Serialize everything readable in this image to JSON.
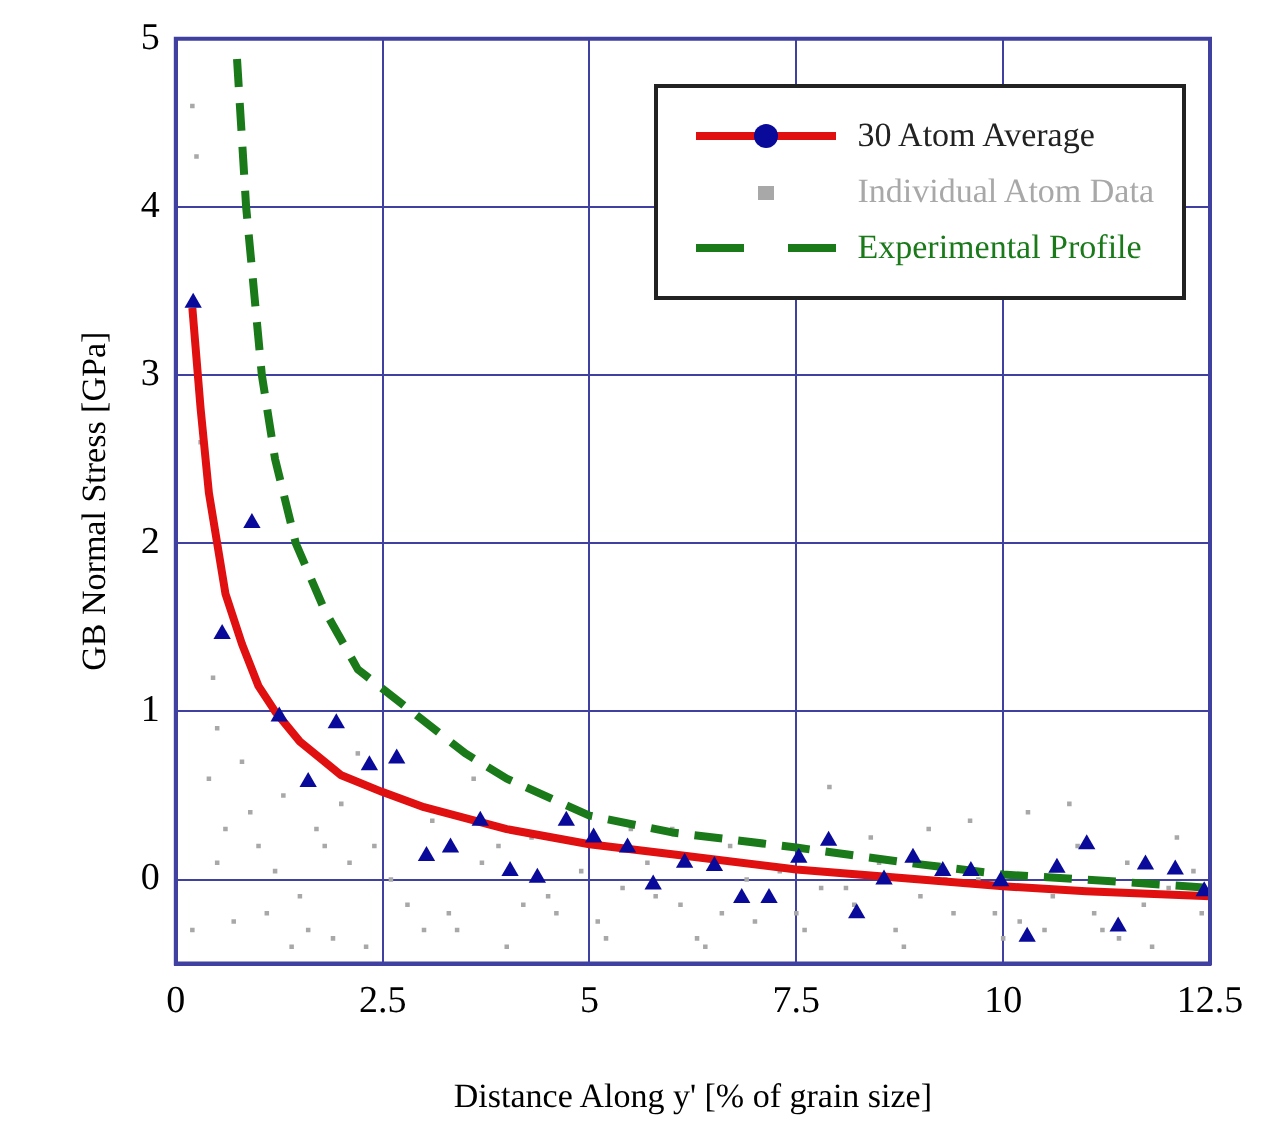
{
  "chart_data": {
    "type": "line",
    "xlabel": "Distance Along y' [% of grain size]",
    "ylabel": "GB Normal Stress [GPa]",
    "xlim": [
      0,
      12.5
    ],
    "xticks": [
      0,
      2.5,
      5,
      7.5,
      10,
      12.5
    ],
    "ylim": [
      -0.5,
      5
    ],
    "yticks": [
      0,
      1,
      2,
      3,
      4,
      5
    ],
    "grid": true,
    "legend": "top right",
    "series": [
      {
        "name": "30 Atom Average",
        "color": "#e01010",
        "marker": "none",
        "line_style": "solid",
        "x": [
          0.2,
          0.3,
          0.4,
          0.6,
          0.8,
          1.0,
          1.2,
          1.5,
          2.0,
          2.5,
          3.0,
          4.0,
          5.0,
          6.0,
          7.5,
          9.0,
          10.0,
          11.0,
          12.5
        ],
        "values": [
          3.4,
          2.8,
          2.3,
          1.7,
          1.4,
          1.15,
          1.0,
          0.82,
          0.62,
          0.52,
          0.43,
          0.3,
          0.21,
          0.15,
          0.06,
          0.0,
          -0.04,
          -0.07,
          -0.1
        ]
      },
      {
        "type": "scatter",
        "color": "#0a0a9a",
        "marker": "triangle",
        "x": [
          0.21,
          0.56,
          0.92,
          1.25,
          1.6,
          1.94,
          2.34,
          2.67,
          3.03,
          3.32,
          3.68,
          4.04,
          4.37,
          4.72,
          5.05,
          5.46,
          5.77,
          6.15,
          6.51,
          6.84,
          7.17,
          7.53,
          7.89,
          8.23,
          8.56,
          8.91,
          9.27,
          9.61,
          9.97,
          10.29,
          10.65,
          11.01,
          11.39,
          11.72,
          12.08,
          12.43
        ],
        "values": [
          3.43,
          1.46,
          2.12,
          0.97,
          0.58,
          0.93,
          0.68,
          0.72,
          0.14,
          0.19,
          0.35,
          0.05,
          0.01,
          0.35,
          0.25,
          0.19,
          -0.03,
          0.1,
          0.08,
          -0.11,
          -0.11,
          0.13,
          0.23,
          -0.2,
          0.0,
          0.13,
          0.05,
          0.05,
          -0.01,
          -0.34,
          0.07,
          0.21,
          -0.28,
          0.09,
          0.06,
          -0.07
        ]
      },
      {
        "name": "Individual Atom Data",
        "type": "scatter",
        "color": "#a8a8a8",
        "marker": "square",
        "x": [
          0.2,
          0.25,
          0.3,
          0.45,
          0.5,
          0.2,
          0.6,
          0.8,
          1.0,
          1.1,
          1.3,
          1.5,
          1.7,
          1.9,
          2.1,
          2.3,
          0.4,
          0.7,
          0.9,
          1.2,
          1.6,
          2.0,
          2.4,
          2.8,
          3.1,
          3.4,
          3.7,
          4.0,
          4.3,
          4.6,
          4.9,
          5.2,
          5.5,
          5.8,
          6.1,
          6.4,
          6.7,
          7.0,
          7.3,
          7.6,
          7.9,
          8.2,
          8.5,
          8.8,
          9.1,
          9.4,
          9.7,
          10.0,
          10.3,
          10.6,
          10.9,
          11.2,
          11.5,
          11.8,
          12.1,
          12.4,
          0.5,
          1.4,
          2.6,
          3.3,
          3.9,
          4.5,
          5.1,
          5.7,
          6.3,
          6.9,
          7.5,
          8.1,
          8.7,
          9.3,
          9.9,
          10.5,
          11.1,
          11.7,
          12.3,
          1.8,
          3.0,
          4.2,
          5.4,
          6.6,
          7.8,
          9.0,
          10.2,
          11.4,
          12.0,
          2.2,
          3.6,
          6.0,
          8.4,
          9.6,
          10.8
        ],
        "values": [
          4.6,
          4.3,
          2.6,
          1.2,
          0.9,
          -0.3,
          0.3,
          0.7,
          0.2,
          -0.2,
          0.5,
          -0.1,
          0.3,
          -0.35,
          0.1,
          -0.4,
          0.6,
          -0.25,
          0.4,
          0.05,
          -0.3,
          0.45,
          0.2,
          -0.15,
          0.35,
          -0.3,
          0.1,
          -0.4,
          0.25,
          -0.2,
          0.05,
          -0.35,
          0.3,
          -0.1,
          -0.15,
          -0.4,
          0.2,
          -0.25,
          0.05,
          -0.3,
          0.55,
          -0.15,
          0.1,
          -0.4,
          0.3,
          -0.2,
          0.0,
          -0.35,
          0.4,
          -0.1,
          0.2,
          -0.3,
          0.1,
          -0.4,
          0.25,
          -0.2,
          0.1,
          -0.4,
          0.0,
          -0.2,
          0.2,
          -0.1,
          -0.25,
          0.1,
          -0.35,
          0.0,
          -0.2,
          -0.05,
          -0.3,
          0.0,
          -0.2,
          -0.3,
          -0.2,
          -0.15,
          0.05,
          0.2,
          -0.3,
          -0.15,
          -0.05,
          -0.2,
          -0.05,
          -0.1,
          -0.25,
          -0.35,
          -0.05,
          0.75,
          0.6,
          0.3,
          0.25,
          0.35,
          0.45
        ]
      },
      {
        "name": "Experimental Profile",
        "color": "#1a7a1a",
        "marker": "none",
        "line_style": "dashed",
        "x": [
          0.74,
          0.85,
          1.04,
          1.2,
          1.45,
          1.8,
          2.2,
          2.85,
          3.5,
          4.0,
          5.0,
          6.0,
          7.5,
          9.0,
          10.0,
          11.0,
          12.5
        ],
        "values": [
          4.88,
          4.0,
          3.0,
          2.5,
          2.0,
          1.6,
          1.25,
          1.0,
          0.75,
          0.6,
          0.38,
          0.28,
          0.19,
          0.09,
          0.03,
          0.0,
          -0.05
        ]
      }
    ]
  }
}
